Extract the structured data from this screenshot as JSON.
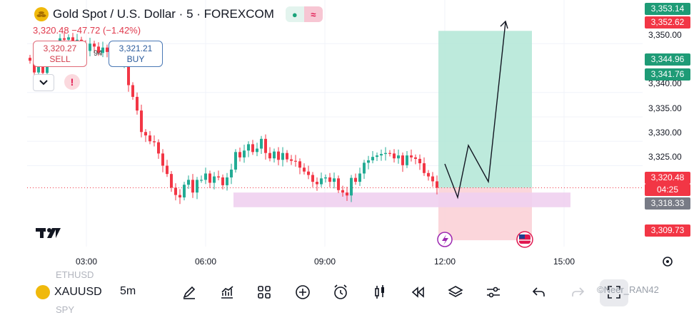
{
  "header": {
    "title": "Gold Spot / U.S. Dollar · 5 · FOREXCOM",
    "change": "3,320.48 −47.72 (−1.42%)",
    "logo_icon": "gold-coins-icon",
    "status_icon": "market-open-dot-icon",
    "wave_icon": "wave-icon"
  },
  "trade": {
    "sell_price": "3,320.27",
    "sell_label": "SELL",
    "spread": "94",
    "buy_price": "3,321.21",
    "buy_label": "BUY"
  },
  "price_axis": {
    "ticks": [
      "3,350.00",
      "3,340.00",
      "3,335.00",
      "3,330.00",
      "3,325.00"
    ],
    "labels": {
      "top_1": "3,353.14",
      "top_2": "3,352.62",
      "mid_1": "3,344.96",
      "mid_2": "3,341.76",
      "last": "3,320.48",
      "countdown": "04:25",
      "zone": "3,318.33",
      "stop": "3,309.73"
    }
  },
  "time_axis": {
    "ticks": [
      "03:00",
      "06:00",
      "09:00",
      "12:00",
      "15:00"
    ]
  },
  "toolbar": {
    "symbol": "XAUUSD",
    "timeframe": "5m",
    "ghost_above": "ETHUSD",
    "ghost_below": "SPY",
    "watermark": "©Neer_RAN42",
    "tools": [
      "brush-icon",
      "indicators-icon",
      "grid-icon",
      "add-icon",
      "alarm-icon",
      "candles-icon",
      "replay-icon",
      "layers-icon",
      "settings-sliders-icon",
      "undo-icon",
      "redo-icon",
      "fullscreen-icon"
    ]
  },
  "colors": {
    "bull": "#22ab94",
    "bear": "#f23645",
    "target_zone": "#b2e6d6",
    "stop_zone": "#fbd2d7",
    "support_zone": "#efd0f0",
    "last_price": "#f23645",
    "target_label": "#1e9b76",
    "zone_label": "#787b86"
  },
  "chart_data": {
    "type": "candlestick",
    "ylim": [
      3305,
      3355
    ],
    "x_ticks": [
      "03:00",
      "06:00",
      "09:00",
      "12:00",
      "15:00"
    ],
    "last_price": 3320.48,
    "target": 3352.62,
    "stop": 3309.73,
    "support_zone": [
      3316.5,
      3319.5
    ],
    "closes": [
      3346.5,
      3344.1,
      3345.3,
      3344.0,
      3346.6,
      3347.0,
      3349.0,
      3351.1,
      3350.8,
      3351.3,
      3350.3,
      3350.8,
      3349.8,
      3348.5,
      3350.0,
      3349.4,
      3348.1,
      3349.2,
      3348.3,
      3348.0,
      3347.5,
      3346.1,
      3346.2,
      3341.5,
      3339.1,
      3336.3,
      3331.9,
      3331.2,
      3330.0,
      3329.8,
      3327.5,
      3325.0,
      3323.3,
      3320.5,
      3319.0,
      3318.5,
      3321.1,
      3322.1,
      3319.5,
      3322.1,
      3322.1,
      3323.4,
      3321.5,
      3322.8,
      3322.6,
      3321.0,
      3322.6,
      3324.2,
      3327.8,
      3326.7,
      3328.1,
      3329.4,
      3327.8,
      3328.5,
      3330.5,
      3327.6,
      3326.5,
      3327.9,
      3326.2,
      3327.6,
      3326.3,
      3326.0,
      3325.9,
      3324.6,
      3323.8,
      3323.1,
      3321.7,
      3321.2,
      3322.4,
      3322.6,
      3321.7,
      3322.4,
      3320.0,
      3319.5,
      3318.9,
      3322.5,
      3321.7,
      3323.4,
      3325.6,
      3326.1,
      3326.8,
      3327.1,
      3327.4,
      3327.6,
      3327.5,
      3326.5,
      3327.1,
      3325.1,
      3327.1,
      3326.7,
      3326.4,
      3325.5,
      3323.5,
      3322.8,
      3321.8,
      3320.48
    ]
  }
}
